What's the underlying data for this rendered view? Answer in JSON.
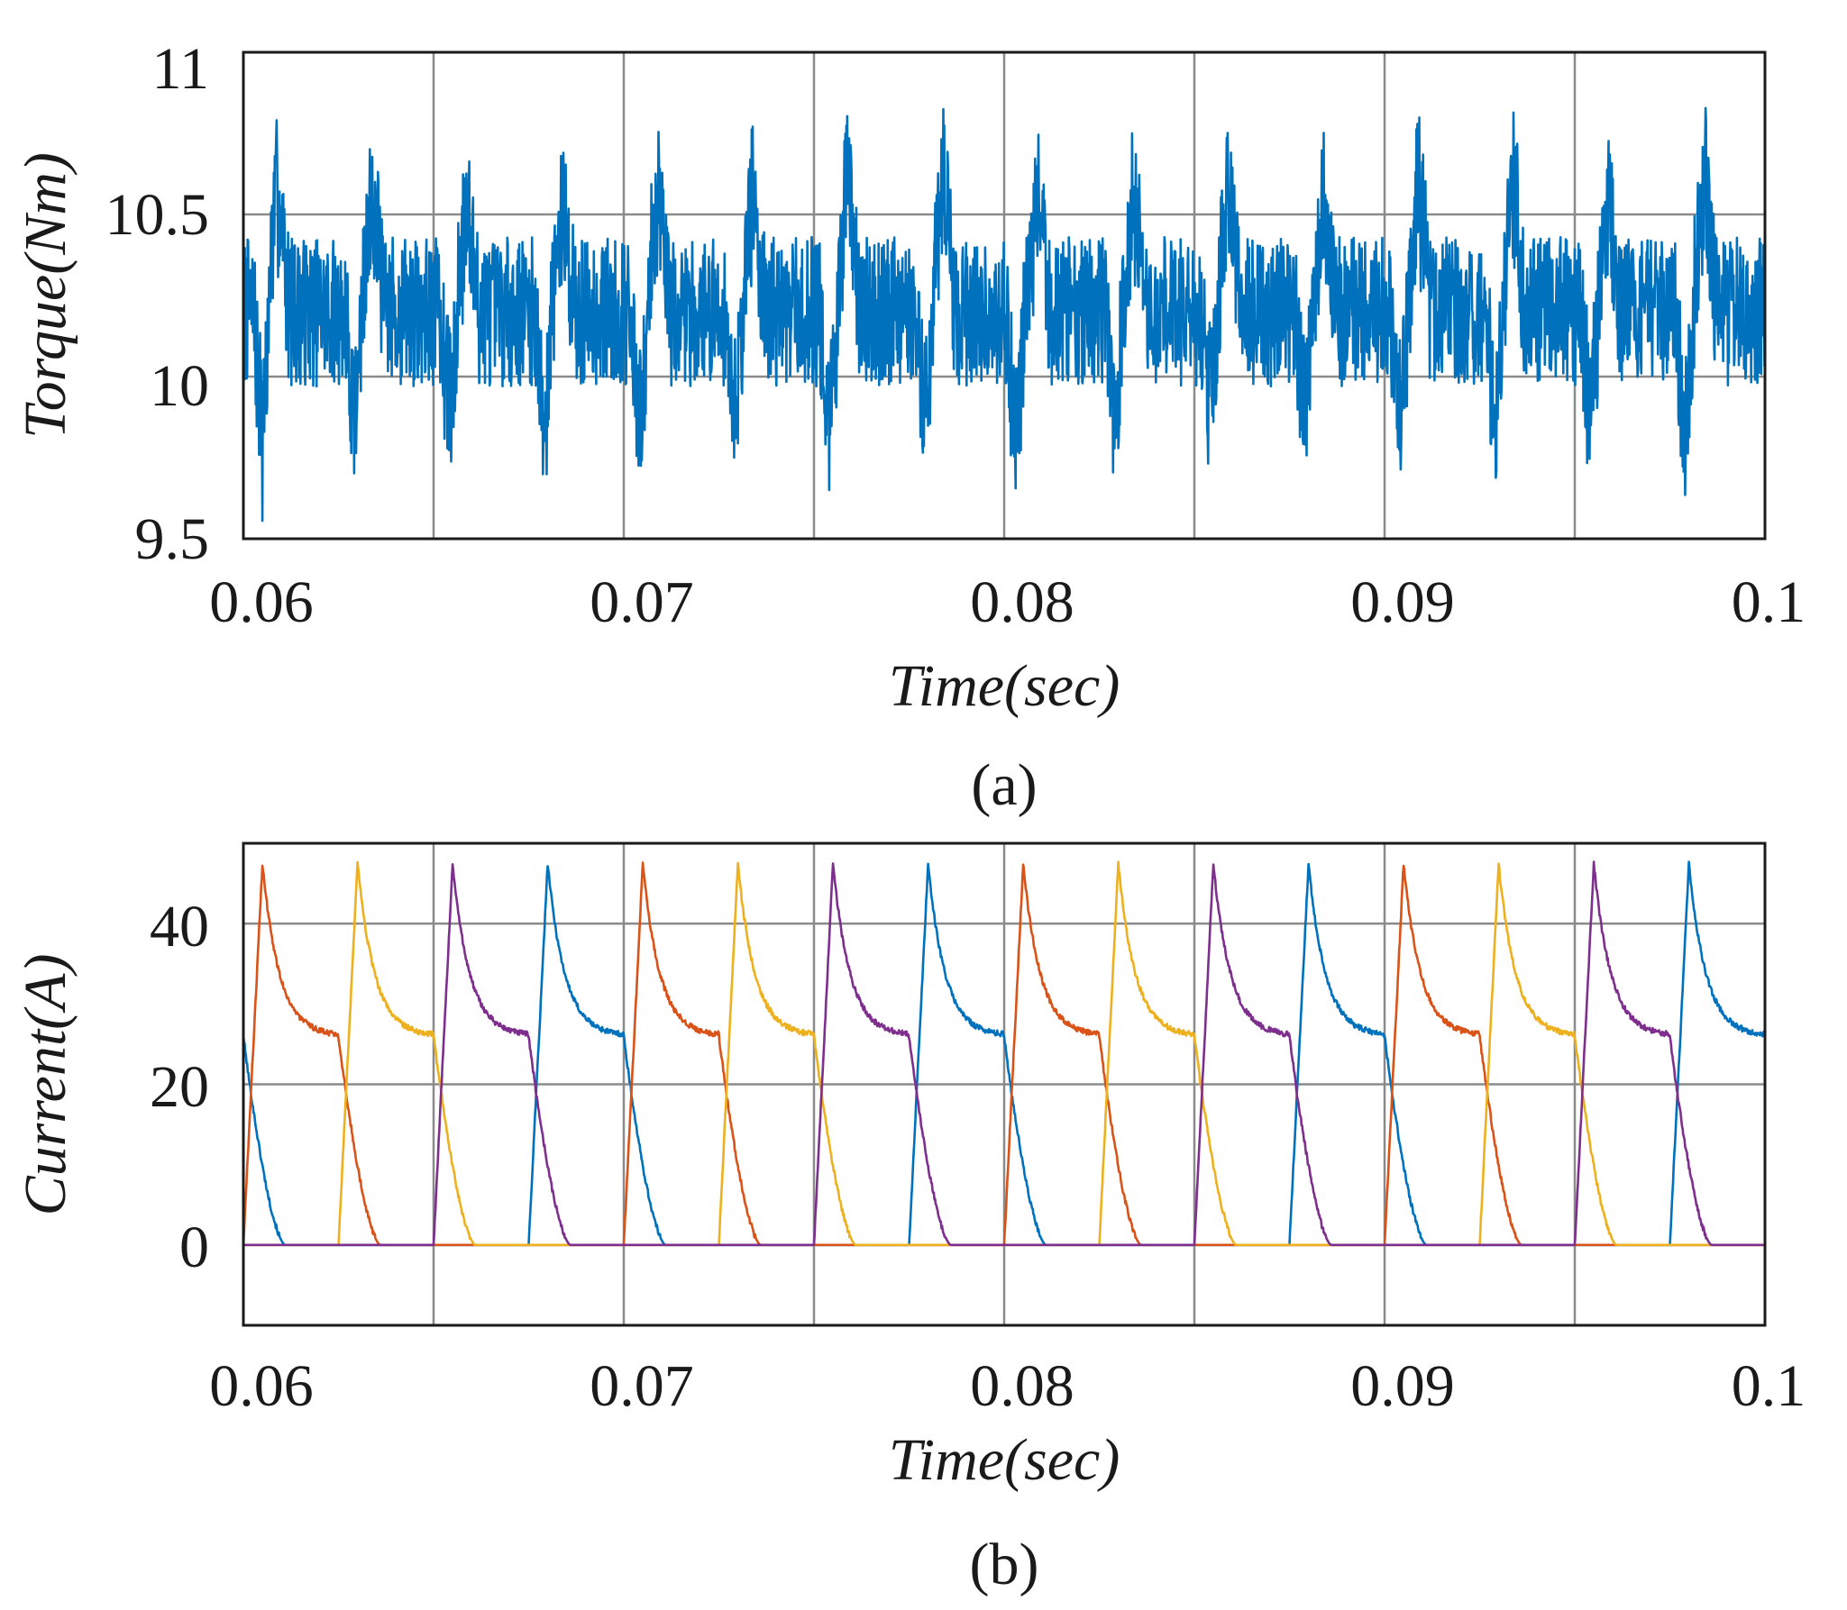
{
  "chart_data": [
    {
      "type": "line",
      "panel": "(a)",
      "xlabel": "Time(sec)",
      "ylabel": "Torque(Nm)",
      "xlim": [
        0.06,
        0.1
      ],
      "ylim": [
        9.5,
        11
      ],
      "x_ticks": [
        "0.06",
        "0.07",
        "0.08",
        "0.09",
        "0.1"
      ],
      "y_ticks": [
        "9.5",
        "10",
        "10.5",
        "11"
      ],
      "x_grid": [
        0.06,
        0.065,
        0.07,
        0.075,
        0.08,
        0.085,
        0.09,
        0.095,
        0.1
      ],
      "y_grid": [
        10,
        10.5
      ],
      "grid": true,
      "series": [
        {
          "color": "#0072BD",
          "description": "torque ripple, mean ~10.2 Nm, band ~9.9-10.5 Nm, spikes every 0.0025 s",
          "spike_times": [
            0.0609,
            0.0634,
            0.0659,
            0.0684,
            0.0709,
            0.0734,
            0.0759,
            0.0784,
            0.0809,
            0.0834,
            0.0859,
            0.0884,
            0.0909,
            0.0934,
            0.0959,
            0.0984
          ],
          "spike_peaks": [
            10.8,
            10.8,
            10.75,
            10.72,
            10.8,
            10.8,
            10.85,
            10.82,
            10.75,
            10.8,
            10.78,
            10.75,
            10.8,
            10.8,
            10.75,
            10.85
          ],
          "dip_times": [
            0.0605,
            0.0629,
            0.0654,
            0.0679,
            0.0704,
            0.0729,
            0.0754,
            0.0779,
            0.0803,
            0.0829,
            0.0854,
            0.0879,
            0.0904,
            0.0929,
            0.0954,
            0.0979
          ],
          "dip_values": [
            9.6,
            9.7,
            9.72,
            9.65,
            9.62,
            9.68,
            9.65,
            9.72,
            9.58,
            9.7,
            9.7,
            9.68,
            9.68,
            9.65,
            9.68,
            9.6
          ]
        }
      ]
    },
    {
      "type": "line",
      "panel": "(b)",
      "xlabel": "Time(sec)",
      "ylabel": "Current(A)",
      "xlim": [
        0.06,
        0.1
      ],
      "ylim": [
        -10,
        50
      ],
      "x_ticks": [
        "0.06",
        "0.07",
        "0.08",
        "0.09",
        "0.1"
      ],
      "y_ticks": [
        "0",
        "20",
        "40"
      ],
      "x_grid": [
        0.06,
        0.065,
        0.07,
        0.075,
        0.08,
        0.085,
        0.09,
        0.095,
        0.1
      ],
      "y_grid": [
        0,
        20,
        40
      ],
      "grid": true,
      "pulse_shape": {
        "peak": 47.5,
        "plateau": 26,
        "rise_s": 0.0005,
        "conduction_s": 0.0025,
        "fall_s": 0.0011
      },
      "series": [
        {
          "color": "#0072BD",
          "pulse_on_times": [
            0.0575,
            0.0675,
            0.0775,
            0.0875,
            0.0975
          ]
        },
        {
          "color": "#D95319",
          "pulse_on_times": [
            0.06,
            0.07,
            0.08,
            0.09
          ]
        },
        {
          "color": "#EDB120",
          "pulse_on_times": [
            0.0625,
            0.0725,
            0.0825,
            0.0925
          ]
        },
        {
          "color": "#7E2F8E",
          "pulse_on_times": [
            0.065,
            0.075,
            0.085,
            0.095
          ]
        }
      ]
    }
  ]
}
